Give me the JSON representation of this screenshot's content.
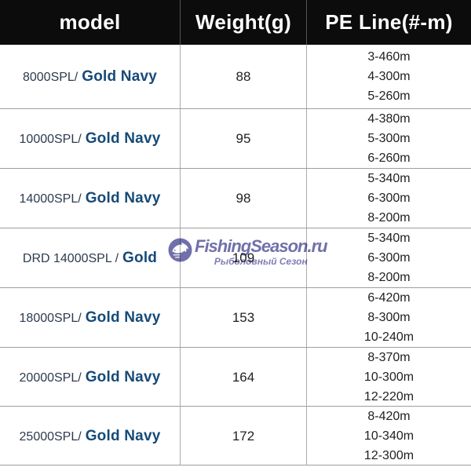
{
  "table": {
    "columns": [
      "model",
      "Weight(g)",
      "PE Line(#-m)"
    ],
    "rows": [
      {
        "model_prefix": "8000SPL/",
        "model_bold": "Gold Navy",
        "weight": "88",
        "pe_lines": [
          "3-460m",
          "4-300m",
          "5-260m"
        ]
      },
      {
        "model_prefix": "10000SPL/",
        "model_bold": "Gold Navy",
        "weight": "95",
        "pe_lines": [
          "4-380m",
          "5-300m",
          "6-260m"
        ]
      },
      {
        "model_prefix": "14000SPL/",
        "model_bold": "Gold Navy",
        "weight": "98",
        "pe_lines": [
          "5-340m",
          "6-300m",
          "8-200m"
        ]
      },
      {
        "model_prefix": "DRD 14000SPL /",
        "model_bold": "Gold",
        "weight": "109",
        "pe_lines": [
          "5-340m",
          "6-300m",
          "8-200m"
        ]
      },
      {
        "model_prefix": "18000SPL/",
        "model_bold": "Gold Navy",
        "weight": "153",
        "pe_lines": [
          "6-420m",
          "8-300m",
          "10-240m"
        ]
      },
      {
        "model_prefix": "20000SPL/",
        "model_bold": "Gold Navy",
        "weight": "164",
        "pe_lines": [
          "8-370m",
          "10-300m",
          "12-220m"
        ]
      },
      {
        "model_prefix": "25000SPL/",
        "model_bold": "Gold Navy",
        "weight": "172",
        "pe_lines": [
          "8-420m",
          "10-340m",
          "12-300m"
        ]
      }
    ]
  },
  "watermark": {
    "title": "FishingSeason.ru",
    "subtitle": "Рыболовный Сезон",
    "logo": "fish-logo",
    "color": "#7170ab"
  },
  "colors": {
    "header_bg": "#0c0c0c",
    "header_text": "#ffffff",
    "model_prefix_text": "#2d3b4e",
    "model_bold_text": "#164a77",
    "cell_text": "#212121",
    "grid_line": "#9e9e9e",
    "watermark": "#7170ab"
  }
}
